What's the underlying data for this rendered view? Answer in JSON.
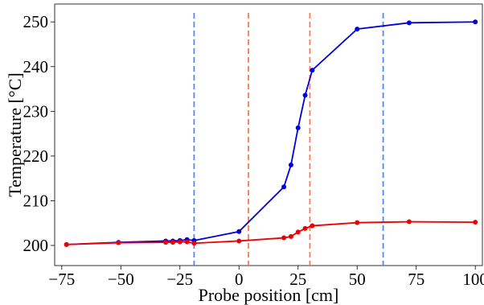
{
  "chart_data": {
    "type": "line",
    "xlabel": "Probe position [cm]",
    "ylabel": "Temperature [°C]",
    "xlim": [
      -78,
      103
    ],
    "ylim": [
      195.5,
      254
    ],
    "x_ticks": [
      -75,
      -50,
      -25,
      0,
      25,
      50,
      75,
      100
    ],
    "x_tick_labels": [
      "−75",
      "−50",
      "−25",
      "0",
      "25",
      "50",
      "75",
      "100"
    ],
    "y_ticks": [
      200,
      210,
      220,
      230,
      240,
      250
    ],
    "y_tick_labels": [
      "200",
      "210",
      "220",
      "230",
      "240",
      "250"
    ],
    "grid": false,
    "legend": "none",
    "series": [
      {
        "color": "#0000dd",
        "points": [
          {
            "x": -73,
            "y": 200.2
          },
          {
            "x": -51,
            "y": 200.7
          },
          {
            "x": -31,
            "y": 201.0
          },
          {
            "x": -28,
            "y": 201.0
          },
          {
            "x": -25,
            "y": 201.1
          },
          {
            "x": -22,
            "y": 201.3
          },
          {
            "x": -19,
            "y": 201.1
          },
          {
            "x": 0,
            "y": 203.1
          },
          {
            "x": 19,
            "y": 213.1
          },
          {
            "x": 22,
            "y": 218.0
          },
          {
            "x": 25,
            "y": 226.3
          },
          {
            "x": 28,
            "y": 233.6
          },
          {
            "x": 31,
            "y": 239.2
          },
          {
            "x": 50,
            "y": 248.4
          },
          {
            "x": 72,
            "y": 249.8
          },
          {
            "x": 100,
            "y": 250.0
          }
        ]
      },
      {
        "color": "#ee0000",
        "points": [
          {
            "x": -73,
            "y": 200.2
          },
          {
            "x": -51,
            "y": 200.6
          },
          {
            "x": -31,
            "y": 200.7
          },
          {
            "x": -28,
            "y": 200.7
          },
          {
            "x": -25,
            "y": 200.8
          },
          {
            "x": -22,
            "y": 200.8
          },
          {
            "x": -19,
            "y": 200.5
          },
          {
            "x": 0,
            "y": 201.0
          },
          {
            "x": 19,
            "y": 201.7
          },
          {
            "x": 22,
            "y": 202.0
          },
          {
            "x": 25,
            "y": 203.0
          },
          {
            "x": 28,
            "y": 203.8
          },
          {
            "x": 31,
            "y": 204.4
          },
          {
            "x": 50,
            "y": 205.1
          },
          {
            "x": 72,
            "y": 205.3
          },
          {
            "x": 100,
            "y": 205.2
          }
        ]
      }
    ],
    "vertical_lines": [
      {
        "x": -19,
        "color": "#5588ee"
      },
      {
        "x": 61,
        "color": "#5588ee"
      },
      {
        "x": 4,
        "color": "#ff7755"
      },
      {
        "x": 30,
        "color": "#ff7755"
      }
    ]
  }
}
